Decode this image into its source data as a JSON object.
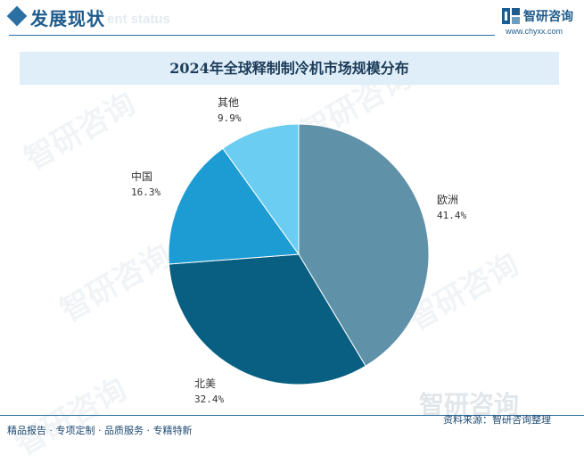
{
  "header": {
    "section_title": "发展现状",
    "section_subtitle": "ent status",
    "brand_name": "智研咨询",
    "brand_url": "www.chyxx.com"
  },
  "watermark": {
    "text": "智研咨询"
  },
  "chart_data": {
    "type": "pie",
    "title": "2024年全球释制制冷机市场规模分布",
    "unit": "%",
    "start_angle": "12 o'clock",
    "direction": "clockwise",
    "slices": [
      {
        "label": "欧洲",
        "value": 41.4,
        "display": "41.4%",
        "color": "#5f91a8"
      },
      {
        "label": "北美",
        "value": 32.4,
        "display": "32.4%",
        "color": "#085f82"
      },
      {
        "label": "中国",
        "value": 16.3,
        "display": "16.3%",
        "color": "#1d9cd3"
      },
      {
        "label": "其他",
        "value": 9.9,
        "display": "9.9%",
        "color": "#6ccdf2"
      }
    ]
  },
  "footer": {
    "services": "精品报告 · 专项定制 · 品质服务 · 专精特新",
    "source": "资料来源：智研咨询整理"
  }
}
